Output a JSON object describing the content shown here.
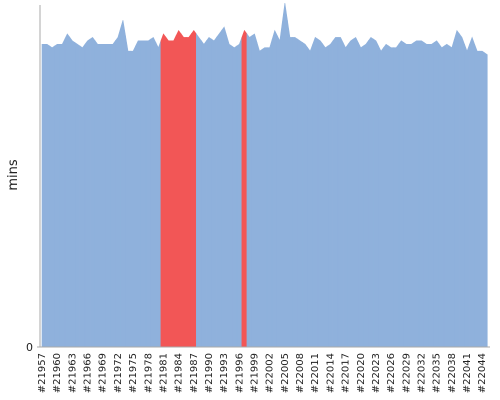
{
  "chart_data": {
    "type": "area",
    "y_label": "mins",
    "categories": [
      "#21957",
      null,
      null,
      "#21960",
      null,
      null,
      "#21963",
      null,
      null,
      "#21966",
      null,
      null,
      "#21969",
      null,
      null,
      "#21972",
      null,
      null,
      "#21975",
      null,
      null,
      "#21978",
      null,
      null,
      "#21981",
      null,
      null,
      "#21984",
      null,
      null,
      "#21987",
      null,
      null,
      "#21990",
      null,
      null,
      "#21993",
      null,
      null,
      "#21996",
      null,
      null,
      "#21999",
      null,
      null,
      "#22002",
      null,
      null,
      "#22005",
      null,
      null,
      "#22008",
      null,
      null,
      "#22011",
      null,
      null,
      "#22014",
      null,
      null,
      "#22017",
      null,
      null,
      "#22020",
      null,
      null,
      "#22023",
      null,
      null,
      "#22026",
      null,
      null,
      "#22029",
      null,
      null,
      "#22032",
      null,
      null,
      "#22035",
      null,
      null,
      "#22038",
      null,
      null,
      "#22041",
      null,
      null,
      "#22044",
      null
    ],
    "values": [
      88,
      88,
      87,
      88,
      88,
      91,
      89,
      88,
      87,
      89,
      90,
      88,
      88,
      88,
      88,
      90,
      95,
      86,
      86,
      89,
      89,
      89,
      90,
      87,
      91,
      89,
      89,
      92,
      90,
      90,
      92,
      90,
      88,
      90,
      89,
      91,
      93,
      88,
      87,
      88,
      92,
      90,
      91,
      86,
      87,
      87,
      92,
      89,
      100,
      90,
      90,
      89,
      88,
      86,
      90,
      89,
      87,
      88,
      90,
      90,
      87,
      89,
      90,
      87,
      88,
      90,
      89,
      86,
      88,
      87,
      87,
      89,
      88,
      88,
      89,
      89,
      88,
      88,
      89,
      87,
      88,
      87,
      92,
      90,
      86,
      90,
      86,
      86,
      85
    ],
    "colors": [
      "#8fb1dc",
      "#8fb1dc",
      "#8fb1dc",
      "#8fb1dc",
      "#8fb1dc",
      "#8fb1dc",
      "#8fb1dc",
      "#8fb1dc",
      "#8fb1dc",
      "#8fb1dc",
      "#8fb1dc",
      "#8fb1dc",
      "#8fb1dc",
      "#8fb1dc",
      "#8fb1dc",
      "#8fb1dc",
      "#8fb1dc",
      "#8fb1dc",
      "#8fb1dc",
      "#8fb1dc",
      "#8fb1dc",
      "#8fb1dc",
      "#8fb1dc",
      "#8fb1dc",
      "#f25656",
      "#f25656",
      "#f25656",
      "#f25656",
      "#f25656",
      "#f25656",
      "#f25656",
      "#8fb1dc",
      "#8fb1dc",
      "#8fb1dc",
      "#8fb1dc",
      "#8fb1dc",
      "#8fb1dc",
      "#8fb1dc",
      "#8fb1dc",
      "#8fb1dc",
      "#f25656",
      "#8fb1dc",
      "#8fb1dc",
      "#8fb1dc",
      "#8fb1dc",
      "#8fb1dc",
      "#8fb1dc",
      "#8fb1dc",
      "#8fb1dc",
      "#8fb1dc",
      "#8fb1dc",
      "#8fb1dc",
      "#8fb1dc",
      "#8fb1dc",
      "#8fb1dc",
      "#8fb1dc",
      "#8fb1dc",
      "#8fb1dc",
      "#8fb1dc",
      "#8fb1dc",
      "#8fb1dc",
      "#8fb1dc",
      "#8fb1dc",
      "#8fb1dc",
      "#8fb1dc",
      "#8fb1dc",
      "#8fb1dc",
      "#8fb1dc",
      "#8fb1dc",
      "#8fb1dc",
      "#8fb1dc",
      "#8fb1dc",
      "#8fb1dc",
      "#8fb1dc",
      "#8fb1dc",
      "#8fb1dc",
      "#8fb1dc",
      "#8fb1dc",
      "#8fb1dc",
      "#8fb1dc",
      "#8fb1dc",
      "#8fb1dc",
      "#8fb1dc",
      "#8fb1dc",
      "#8fb1dc",
      "#8fb1dc",
      "#8fb1dc",
      "#8fb1dc",
      "#8fb1dc"
    ],
    "ylim": [
      0,
      100
    ],
    "yticks": [
      0
    ]
  }
}
